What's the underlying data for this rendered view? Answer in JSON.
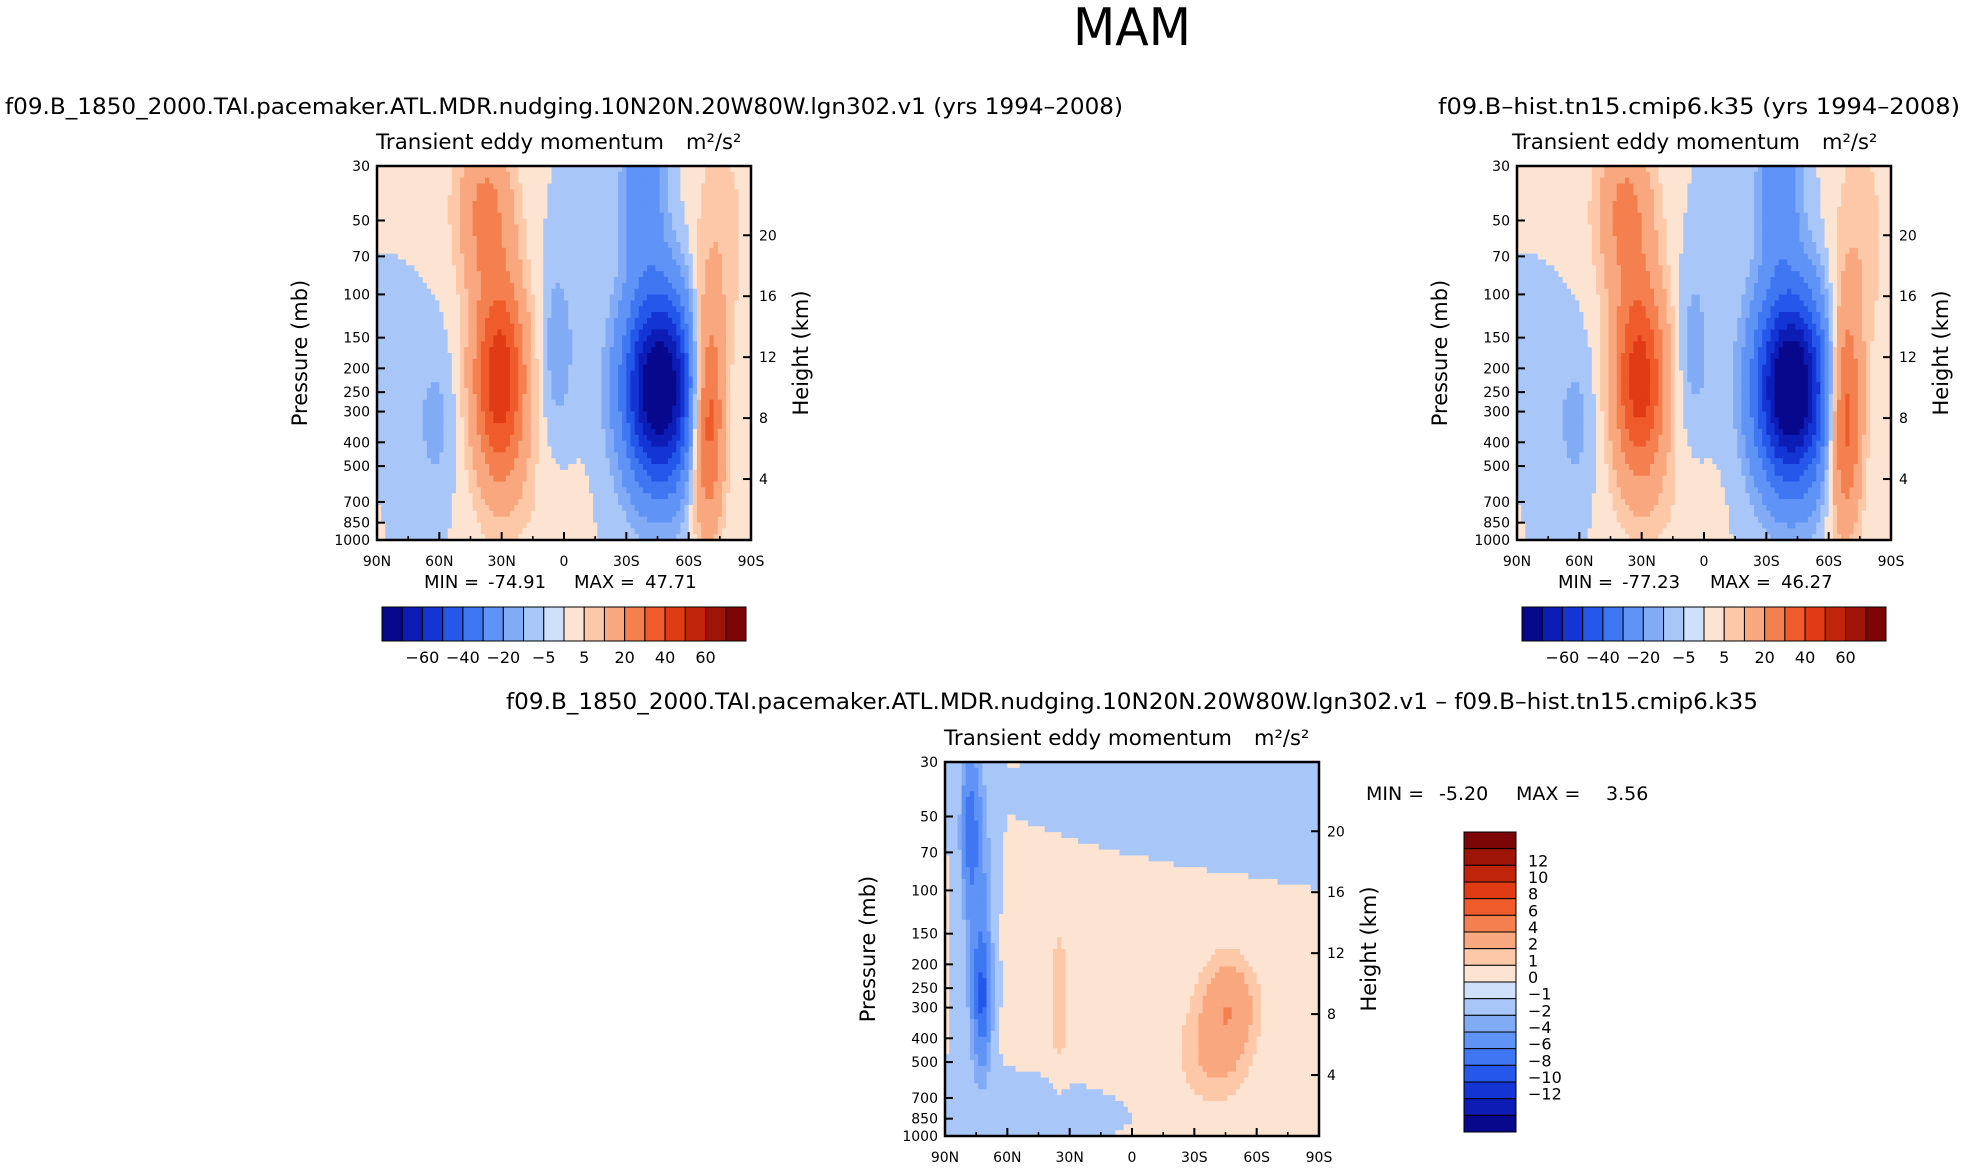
{
  "page": {
    "title": "MAM"
  },
  "colors": {
    "text": "#000000",
    "blues": [
      "#08088c",
      "#0c1cb4",
      "#1434d4",
      "#2457ea",
      "#3f76f2",
      "#5f93f5",
      "#82abf6",
      "#a8c6f7",
      "#cfe1fa"
    ],
    "neutral": "#ffffff",
    "reds": [
      "#fde4d2",
      "#fcc8a8",
      "#f9a77e",
      "#f5804f",
      "#f05b2b",
      "#e03b14",
      "#c0250c",
      "#9e1508",
      "#7c0606"
    ]
  },
  "chart_data": [
    {
      "id": "panel1",
      "type": "heatmap",
      "case": "f09.B_1850_2000.TAI.pacemaker.ATL.MDR.nudging.10N20N.20W80W.lgn302.v1 (yrs 1994–2008)",
      "variable": "Transient eddy momentum",
      "units_text": "m²/s²",
      "ylabel": "Pressure (mb)",
      "ylabel_right": "Height (km)",
      "x_ticks": [
        "90N",
        "60N",
        "30N",
        "0",
        "30S",
        "60S",
        "90S"
      ],
      "y_ticks": [
        "30",
        "50",
        "70",
        "100",
        "150",
        "200",
        "250",
        "300",
        "400",
        "500",
        "700",
        "850",
        "1000"
      ],
      "y_right_ticks": [
        "20",
        "16",
        "12",
        "8",
        "4"
      ],
      "xlim": [
        90,
        -90
      ],
      "ylim": [
        1000,
        30
      ],
      "min_label": "MIN =",
      "min_value": "-74.91",
      "max_label": "MAX =",
      "max_value": "47.71",
      "colorbar": {
        "orientation": "horizontal",
        "levels": [
          -70,
          -60,
          -50,
          -40,
          -30,
          -20,
          -10,
          -5,
          0,
          5,
          10,
          20,
          30,
          40,
          50,
          60,
          70
        ],
        "labels": [
          "-60",
          "-40",
          "-20",
          "-5",
          "5",
          "20",
          "40",
          "60"
        ]
      },
      "features": [
        {
          "kind": "positive-core",
          "lat": 31,
          "p": 225,
          "peak": 47.71
        },
        {
          "kind": "negative-core",
          "lat": -46,
          "p": 240,
          "peak": -74.91
        },
        {
          "kind": "positive-core",
          "lat": -69,
          "p": 310,
          "peak": 38
        }
      ]
    },
    {
      "id": "panel2",
      "type": "heatmap",
      "case": "f09.B–hist.tn15.cmip6.k35 (yrs 1994–2008)",
      "variable": "Transient eddy momentum",
      "units_text": "m²/s²",
      "ylabel": "Pressure (mb)",
      "ylabel_right": "Height (km)",
      "x_ticks": [
        "90N",
        "60N",
        "30N",
        "0",
        "30S",
        "60S",
        "90S"
      ],
      "y_ticks": [
        "30",
        "50",
        "70",
        "100",
        "150",
        "200",
        "250",
        "300",
        "400",
        "500",
        "700",
        "850",
        "1000"
      ],
      "y_right_ticks": [
        "20",
        "16",
        "12",
        "8",
        "4"
      ],
      "xlim": [
        90,
        -90
      ],
      "ylim": [
        1000,
        30
      ],
      "min_label": "MIN =",
      "min_value": "-77.23",
      "max_label": "MAX =",
      "max_value": "46.27",
      "colorbar": {
        "orientation": "horizontal",
        "levels": [
          -70,
          -60,
          -50,
          -40,
          -30,
          -20,
          -10,
          -5,
          0,
          5,
          10,
          20,
          30,
          40,
          50,
          60,
          70
        ],
        "labels": [
          "-60",
          "-40",
          "-20",
          "-5",
          "5",
          "20",
          "40",
          "60"
        ]
      },
      "features": [
        {
          "kind": "positive-core",
          "lat": 31,
          "p": 225,
          "peak": 46.27
        },
        {
          "kind": "negative-core",
          "lat": -42,
          "p": 240,
          "peak": -77.23
        },
        {
          "kind": "positive-core",
          "lat": -68,
          "p": 310,
          "peak": 37
        }
      ]
    },
    {
      "id": "panel3",
      "type": "heatmap",
      "case": "f09.B_1850_2000.TAI.pacemaker.ATL.MDR.nudging.10N20N.20W80W.lgn302.v1 – f09.B–hist.tn15.cmip6.k35",
      "variable": "Transient eddy momentum",
      "units_text": "m²/s²",
      "ylabel": "Pressure (mb)",
      "ylabel_right": "Height (km)",
      "x_ticks": [
        "90N",
        "60N",
        "30N",
        "0",
        "30S",
        "60S",
        "90S"
      ],
      "y_ticks": [
        "30",
        "50",
        "70",
        "100",
        "150",
        "200",
        "250",
        "300",
        "400",
        "500",
        "700",
        "850",
        "1000"
      ],
      "y_right_ticks": [
        "20",
        "16",
        "12",
        "8",
        "4"
      ],
      "xlim": [
        90,
        -90
      ],
      "ylim": [
        1000,
        30
      ],
      "min_label": "MIN =",
      "min_value": "-5.20",
      "max_label": "MAX =",
      "max_value": "3.56",
      "colorbar": {
        "orientation": "vertical",
        "levels": [
          -14,
          -12,
          -10,
          -8,
          -6,
          -4,
          -2,
          -1,
          0,
          1,
          2,
          4,
          6,
          8,
          10,
          12,
          14
        ],
        "labels": [
          "12",
          "10",
          "8",
          "6",
          "4",
          "2",
          "1",
          "0",
          "−1",
          "−2",
          "−4",
          "−6",
          "−8",
          "−10",
          "−12"
        ]
      },
      "features": [
        {
          "kind": "negative-band",
          "lat": 73,
          "p_range": [
            30,
            700
          ],
          "peak": -5.2
        },
        {
          "kind": "positive-region",
          "lat": -45,
          "p": 280,
          "peak": 3.56
        }
      ]
    }
  ]
}
